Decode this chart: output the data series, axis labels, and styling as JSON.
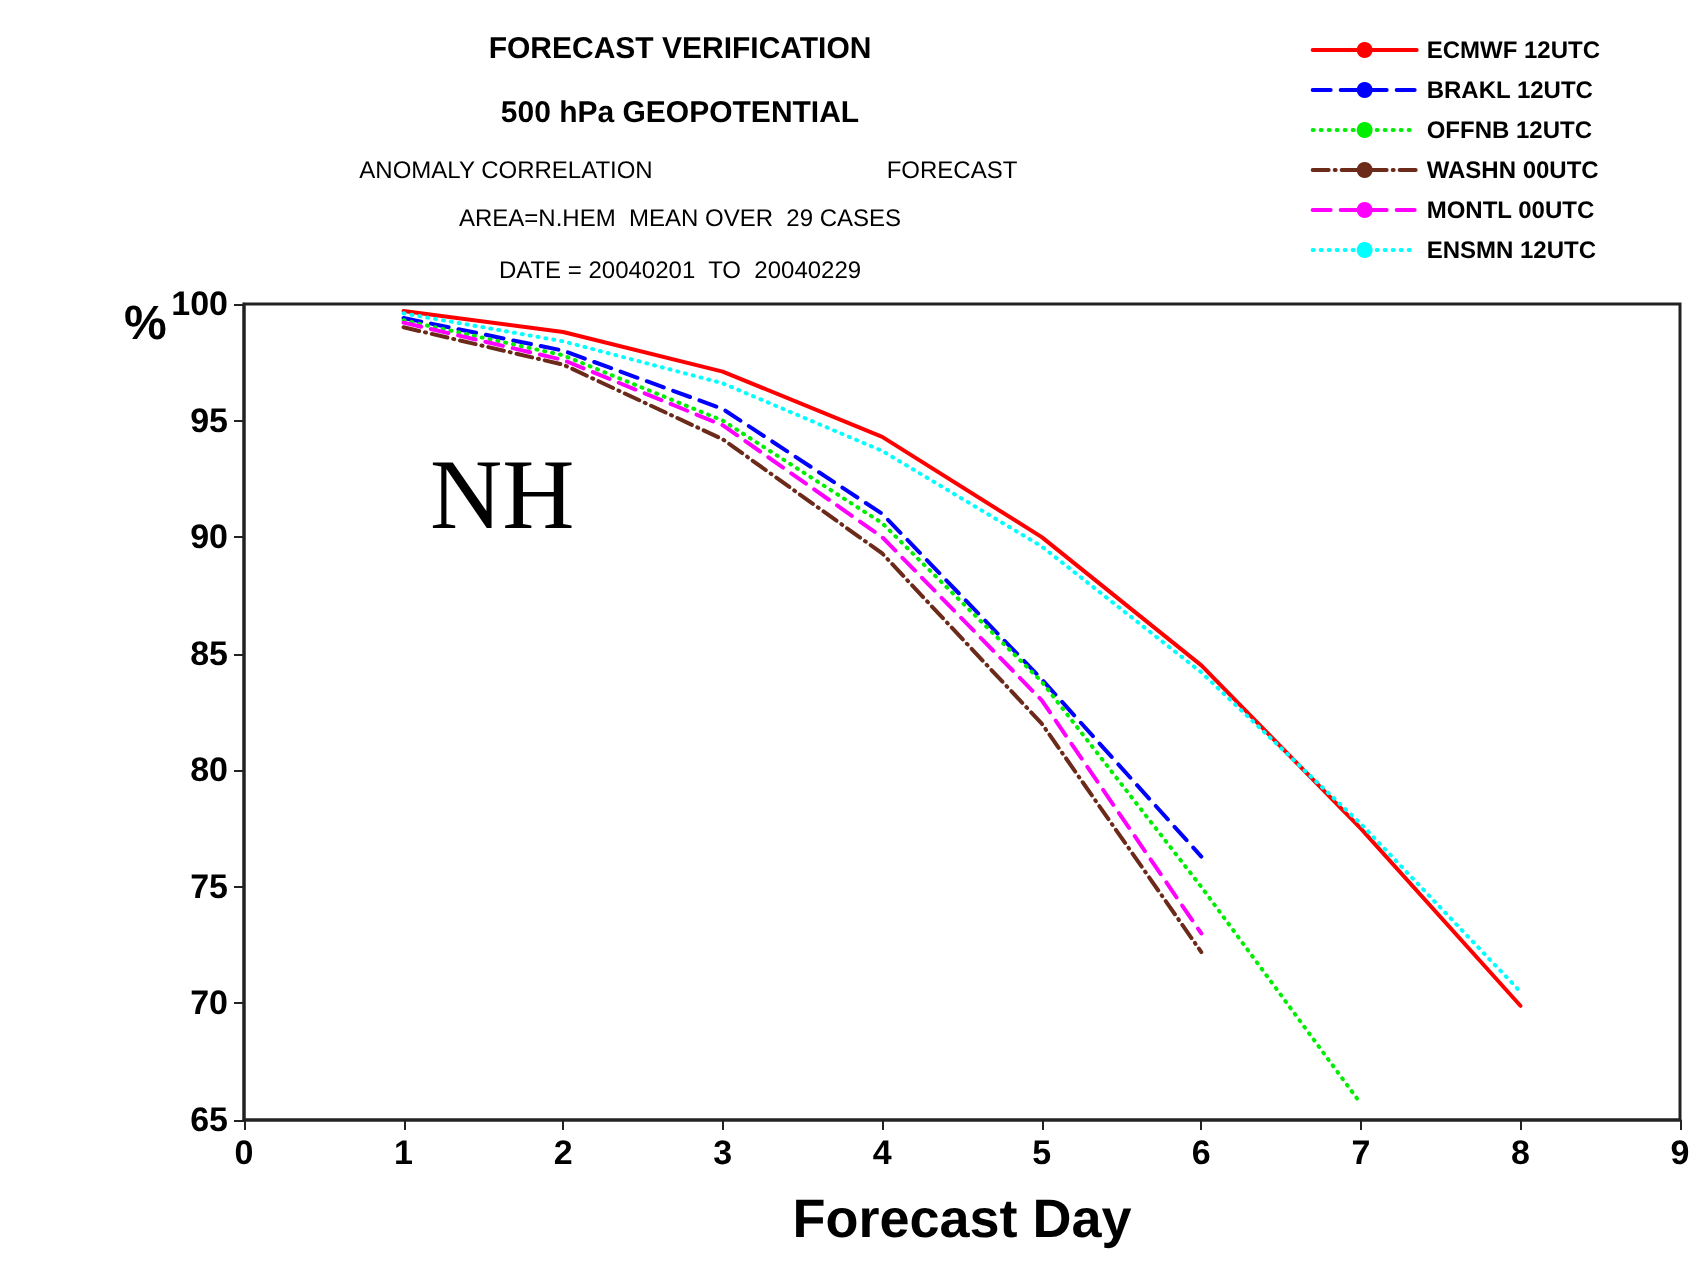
{
  "chart_data": {
    "type": "line",
    "title": "FORECAST VERIFICATION",
    "subtitle": "500 hPa GEOPOTENTIAL",
    "xlabel": "Forecast Day",
    "ylabel": "%",
    "annotations": [
      "ANOMALY CORRELATION",
      "FORECAST",
      "AREA=N.HEM  MEAN OVER  29 CASES",
      "DATE = 20040201  TO  20040229",
      "NH"
    ],
    "series": [
      {
        "name": "ECMWF 12UTC",
        "color": "#ff0000",
        "line_style": "solid",
        "x": [
          1,
          2,
          3,
          4,
          5,
          6,
          7,
          8
        ],
        "values": [
          99.7,
          98.8,
          97.1,
          94.3,
          90.0,
          84.5,
          77.5,
          69.9
        ]
      },
      {
        "name": "BRAKL 12UTC",
        "color": "#0000ff",
        "line_style": "dashed",
        "x": [
          1,
          2,
          3,
          4,
          5,
          6
        ],
        "values": [
          99.4,
          98.0,
          95.5,
          91.0,
          83.9,
          76.3
        ]
      },
      {
        "name": "OFFNB 12UTC",
        "color": "#00ee00",
        "line_style": "dotted",
        "x": [
          1,
          2,
          3,
          4,
          5,
          6,
          7
        ],
        "values": [
          99.3,
          97.8,
          95.0,
          90.6,
          83.8,
          75.0,
          65.7
        ]
      },
      {
        "name": "WASHN 00UTC",
        "color": "#6b2a1a",
        "line_style": "dashdot",
        "x": [
          1,
          2,
          3,
          4,
          5,
          6
        ],
        "values": [
          99.0,
          97.4,
          94.2,
          89.3,
          82.0,
          72.2
        ]
      },
      {
        "name": "MONTL 00UTC",
        "color": "#ff00ff",
        "line_style": "dashed",
        "x": [
          1,
          2,
          3,
          4,
          5,
          6
        ],
        "values": [
          99.2,
          97.6,
          94.8,
          90.0,
          83.0,
          73.0
        ]
      },
      {
        "name": "ENSMN 12UTC",
        "color": "#00ffff",
        "line_style": "dotted",
        "x": [
          1,
          2,
          3,
          4,
          5,
          6,
          7,
          8
        ],
        "values": [
          99.6,
          98.4,
          96.6,
          93.7,
          89.6,
          84.2,
          77.7,
          70.5
        ]
      }
    ],
    "xlim": [
      0,
      9
    ],
    "xticks": [
      0,
      1,
      2,
      3,
      4,
      5,
      6,
      7,
      8,
      9
    ],
    "ylim": [
      65,
      100
    ],
    "yticks": [
      65,
      70,
      75,
      80,
      85,
      90,
      95,
      100
    ],
    "grid": false,
    "legend": "top right",
    "marker": "none"
  }
}
